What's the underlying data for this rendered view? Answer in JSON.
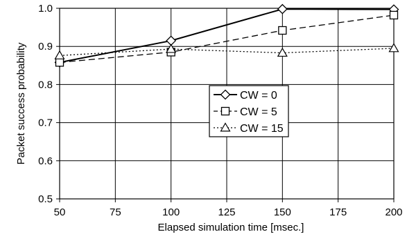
{
  "chart_data": {
    "type": "line",
    "title": "",
    "xlabel": "Elapsed simulation time [msec.]",
    "ylabel": "Packet success probability",
    "xlim": [
      50,
      200
    ],
    "ylim": [
      0.5,
      1.0
    ],
    "xticks": [
      50,
      75,
      100,
      125,
      150,
      175,
      200
    ],
    "xtick_labels": [
      "50",
      "75",
      "100",
      "125",
      "150",
      "175",
      "200"
    ],
    "yticks": [
      0.5,
      0.6,
      0.7,
      0.8,
      0.9,
      1.0
    ],
    "ytick_labels": [
      "0.5",
      "0.6",
      "0.7",
      "0.8",
      "0.9",
      "1.0"
    ],
    "grid": true,
    "legend_position": "center-right",
    "x": [
      50,
      100,
      150,
      200
    ],
    "series": [
      {
        "name": "CW = 0",
        "values": [
          0.858,
          0.915,
          0.998,
          0.997
        ],
        "line_style": "solid",
        "marker": "diamond",
        "color": "#000000"
      },
      {
        "name": "CW = 5",
        "values": [
          0.858,
          0.885,
          0.942,
          0.982
        ],
        "line_style": "dashed",
        "marker": "square",
        "color": "#000000"
      },
      {
        "name": "CW = 15",
        "values": [
          0.876,
          0.893,
          0.883,
          0.895
        ],
        "line_style": "dotted",
        "marker": "triangle",
        "color": "#000000"
      }
    ]
  }
}
